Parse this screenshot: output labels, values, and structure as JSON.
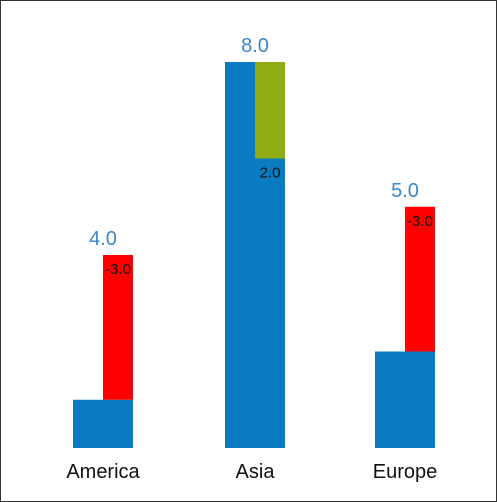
{
  "chart_data": {
    "type": "bar",
    "subtype": "waterfall-per-category",
    "title": "",
    "xlabel": "",
    "ylabel": "",
    "ylim": [
      0,
      8
    ],
    "grid": false,
    "legend": "none",
    "categories": [
      "America",
      "Asia",
      "Europe"
    ],
    "base_values": [
      4.0,
      8.0,
      5.0
    ],
    "base_labels": [
      "4.0",
      "8.0",
      "5.0"
    ],
    "deltas": [
      -3.0,
      2.0,
      -3.0
    ],
    "delta_labels": [
      "-3.0",
      "2.0",
      "-3.0"
    ],
    "colors": {
      "base": "#0a7bc1",
      "negative_delta": "#ff0000",
      "positive_delta": "#8fac12",
      "total_label": "#3a86c8"
    }
  }
}
